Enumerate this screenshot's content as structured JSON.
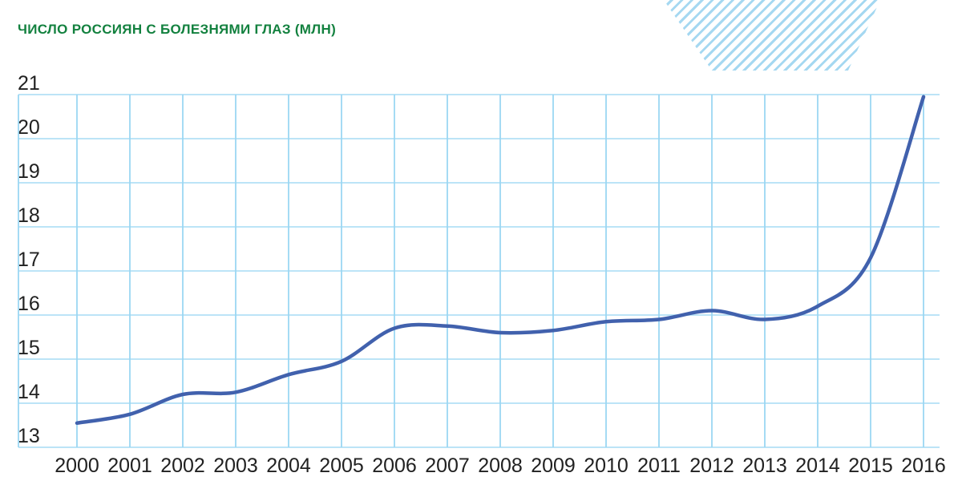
{
  "title": "ЧИСЛО РОССИЯН С БОЛЕЗНЯМИ ГЛАЗ (МЛН)",
  "colors": {
    "title_green": "#13813f",
    "line_blue": "#4161ad",
    "h_gridline": "#b2e0f6",
    "v_gridline": "#9bd7f3",
    "axis_text": "#212121",
    "hexagon_stripe_blue": "#a5d8f1"
  },
  "decoration": {
    "shape": "striped-hexagon-cut-by-top-edge"
  },
  "chart_data": {
    "type": "line",
    "title": "ЧИСЛО РОССИЯН С БОЛЕЗНЯМИ ГЛАЗ (МЛН)",
    "x": [
      2000,
      2001,
      2002,
      2003,
      2004,
      2005,
      2006,
      2007,
      2008,
      2009,
      2010,
      2011,
      2012,
      2013,
      2014,
      2015,
      2016
    ],
    "values": [
      13.55,
      13.75,
      14.2,
      14.25,
      14.65,
      14.95,
      15.7,
      15.75,
      15.6,
      15.65,
      15.85,
      15.9,
      16.1,
      15.9,
      16.2,
      17.3,
      20.95
    ],
    "xlabel": "",
    "ylabel": "",
    "ylim": [
      13,
      21
    ],
    "yticks": [
      13,
      14,
      15,
      16,
      17,
      18,
      19,
      20,
      21
    ],
    "grid": true,
    "legend": false
  }
}
